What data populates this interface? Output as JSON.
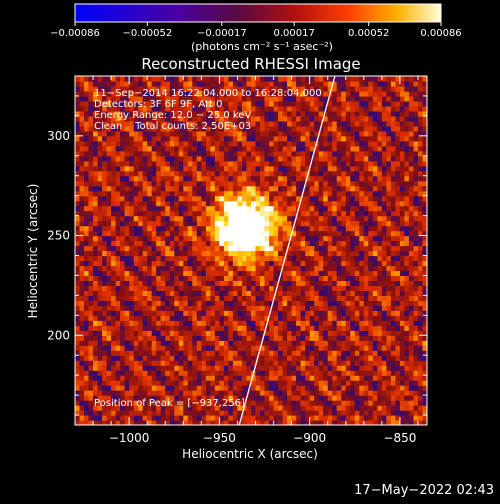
{
  "chart_data": {
    "type": "heatmap",
    "title": "Reconstructed RHESSI Image",
    "xlabel": "Heliocentric X (arcsec)",
    "ylabel": "Heliocentric Y (arcsec)",
    "xlim": [
      -1030,
      -835
    ],
    "ylim": [
      155,
      330
    ],
    "x_ticks": [
      -1000,
      -950,
      -900,
      -850
    ],
    "x_tick_labels": [
      "−1000",
      "−950",
      "−900",
      "−850"
    ],
    "y_ticks": [
      200,
      250,
      300
    ],
    "y_tick_labels": [
      "200",
      "250",
      "300"
    ],
    "colorbar": {
      "range": [
        -0.00086,
        0.00086
      ],
      "ticks": [
        -0.00086,
        -0.00052,
        -0.00017,
        0.00017,
        0.00052,
        0.00086
      ],
      "tick_labels": [
        "−0.00086",
        "−0.00052",
        "−0.00017",
        "0.00017",
        "0.00052",
        "0.00086"
      ],
      "unit_label": "(photons cm⁻² s⁻¹ asec⁻²)"
    },
    "annotations": [
      "11−Sep−2014 16:22:04.000 to 16:28:04.000",
      "Detectors: 3F 6F 9F, Att 0",
      "Energy Range: 12.0 − 25.0 keV",
      "Clean    Total counts: 2.50E+03"
    ],
    "peak_label": "Position of Peak = [−937,256]",
    "peak": {
      "x": -937,
      "y": 256
    },
    "limb_line": [
      {
        "x": -939,
        "y": 155
      },
      {
        "x": -886,
        "y": 330
      }
    ],
    "grid": false,
    "colormap": [
      "#0000cc",
      "#2b0a8a",
      "#3a0a6a",
      "#8a1010",
      "#e03000",
      "#ff8800",
      "#ffd000",
      "#ffffff"
    ]
  },
  "footer": {
    "timestamp": "17−May−2022 02:43"
  }
}
